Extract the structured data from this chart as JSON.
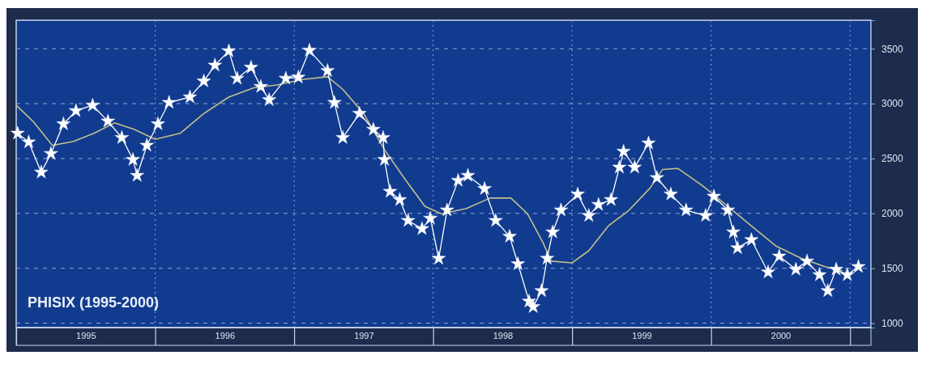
{
  "chart_data": {
    "type": "line",
    "title": "PHISIX (1995-2000)",
    "xlim": [
      1995,
      2001.15
    ],
    "ylim": [
      960,
      3760
    ],
    "xticks": [
      {
        "value": 1995,
        "label": null
      },
      {
        "value": 1995.5,
        "label": "1995"
      },
      {
        "value": 1996,
        "label": null
      },
      {
        "value": 1996.5,
        "label": "1996"
      },
      {
        "value": 1997,
        "label": null
      },
      {
        "value": 1997.5,
        "label": "1997"
      },
      {
        "value": 1998,
        "label": null
      },
      {
        "value": 1998.5,
        "label": "1998"
      },
      {
        "value": 1999,
        "label": null
      },
      {
        "value": 1999.5,
        "label": "1999"
      },
      {
        "value": 2000,
        "label": null
      },
      {
        "value": 2000.5,
        "label": "2000"
      },
      {
        "value": 2001,
        "label": null
      }
    ],
    "yticks": [
      1000,
      1500,
      2000,
      2500,
      3000,
      3500
    ],
    "grid": true,
    "line_style": "solid",
    "series": [
      {
        "color": "#ffffff",
        "marker": "star",
        "x": [
          1995.01,
          1995.09,
          1995.18,
          1995.25,
          1995.34,
          1995.43,
          1995.55,
          1995.66,
          1995.76,
          1995.84,
          1995.87,
          1995.94,
          1996.02,
          1996.1,
          1996.25,
          1996.35,
          1996.43,
          1996.53,
          1996.59,
          1996.69,
          1996.76,
          1996.82,
          1996.94,
          1997.03,
          1997.11,
          1997.24,
          1997.29,
          1997.35,
          1997.47,
          1997.57,
          1997.64,
          1997.65,
          1997.69,
          1997.76,
          1997.82,
          1997.92,
          1997.98,
          1998.04,
          1998.1,
          1998.18,
          1998.25,
          1998.37,
          1998.45,
          1998.55,
          1998.61,
          1998.69,
          1998.72,
          1998.78,
          1998.82,
          1998.86,
          1998.92,
          1999.04,
          1999.12,
          1999.19,
          1999.28,
          1999.34,
          1999.37,
          1999.45,
          1999.55,
          1999.61,
          1999.71,
          1999.82,
          1999.96,
          2000.02,
          2000.12,
          2000.16,
          2000.19,
          2000.29,
          2000.41,
          2000.49,
          2000.61,
          2000.69,
          2000.78,
          2000.84,
          2000.9,
          2000.98,
          2001.06
        ],
        "values": [
          2730,
          2650,
          2375,
          2545,
          2815,
          2935,
          2985,
          2840,
          2690,
          2490,
          2345,
          2620,
          2815,
          3010,
          3060,
          3205,
          3350,
          3480,
          3230,
          3330,
          3155,
          3035,
          3230,
          3240,
          3485,
          3300,
          3010,
          2690,
          2910,
          2765,
          2690,
          2490,
          2200,
          2125,
          1935,
          1860,
          1955,
          1590,
          2030,
          2300,
          2345,
          2225,
          1935,
          1790,
          1540,
          1200,
          1150,
          1295,
          1590,
          1830,
          2030,
          2175,
          1980,
          2080,
          2125,
          2420,
          2565,
          2420,
          2640,
          2325,
          2175,
          2030,
          1980,
          2155,
          2030,
          1830,
          1685,
          1760,
          1465,
          1610,
          1490,
          1565,
          1440,
          1295,
          1490,
          1440,
          1515
        ]
      },
      {
        "color": "#c2bf8e",
        "marker": "none",
        "x": [
          1995.0,
          1995.12,
          1995.26,
          1995.41,
          1995.56,
          1995.71,
          1995.85,
          1996.0,
          1996.18,
          1996.35,
          1996.53,
          1996.71,
          1996.88,
          1997.06,
          1997.24,
          1997.35,
          1997.5,
          1997.65,
          1997.79,
          1997.94,
          1998.06,
          1998.24,
          1998.41,
          1998.56,
          1998.68,
          1998.79,
          1998.85,
          1999.0,
          1999.12,
          1999.26,
          1999.41,
          1999.56,
          1999.65,
          1999.76,
          1999.94,
          2000.12,
          2000.29,
          2000.47,
          2000.65,
          2000.82,
          2000.94
        ],
        "values": [
          2985,
          2840,
          2620,
          2655,
          2730,
          2825,
          2765,
          2675,
          2730,
          2910,
          3060,
          3145,
          3170,
          3220,
          3245,
          3130,
          2910,
          2580,
          2325,
          2065,
          1995,
          2045,
          2140,
          2140,
          1995,
          1735,
          1565,
          1550,
          1660,
          1885,
          2030,
          2230,
          2400,
          2410,
          2250,
          2065,
          1885,
          1700,
          1590,
          1515,
          1480
        ]
      }
    ]
  }
}
